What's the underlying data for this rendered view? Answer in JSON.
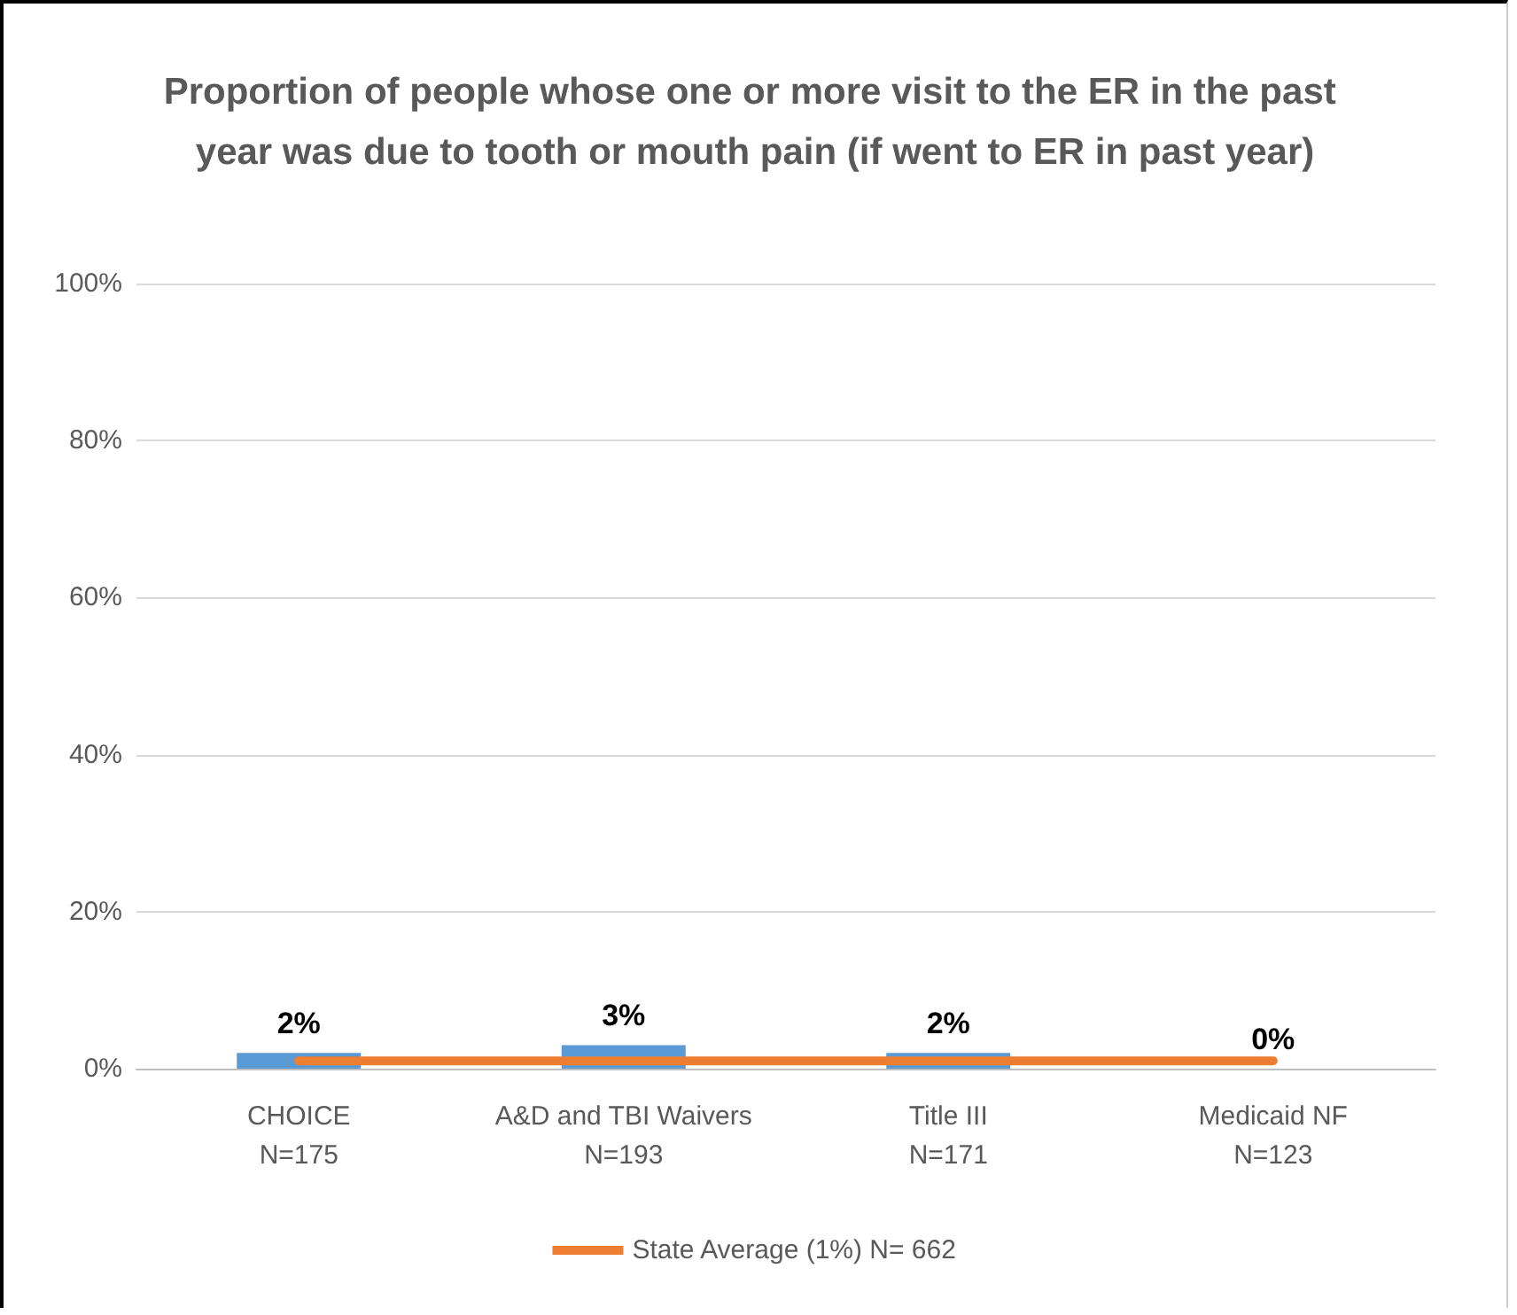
{
  "chart_data": {
    "type": "bar",
    "title": "Proportion of people whose one or more visit to the ER in the past year was due to tooth or mouth pain (if went to ER in past year)",
    "categories": [
      "CHOICE\nN=175",
      "A&D and TBI Waivers\nN=193",
      "Title III\nN=171",
      "Medicaid NF\nN=123"
    ],
    "series": [
      {
        "color": "#5b9bd5",
        "values": [
          2,
          3,
          2,
          0
        ],
        "value_labels": [
          "2%",
          "3%",
          "2%",
          "0%"
        ]
      },
      {
        "type": "line",
        "name": "State Average (1%) N= 662",
        "color": "#ed7d31",
        "values": [
          1,
          1,
          1,
          1
        ]
      }
    ],
    "ylim": [
      0,
      100
    ],
    "yticks": [
      {
        "value": 0,
        "label": "0%"
      },
      {
        "value": 20,
        "label": "20%"
      },
      {
        "value": 40,
        "label": "40%"
      },
      {
        "value": 60,
        "label": "60%"
      },
      {
        "value": 80,
        "label": "80%"
      },
      {
        "value": 100,
        "label": "100%"
      }
    ],
    "grid": "y",
    "legend": "bottom",
    "marker": "none"
  }
}
